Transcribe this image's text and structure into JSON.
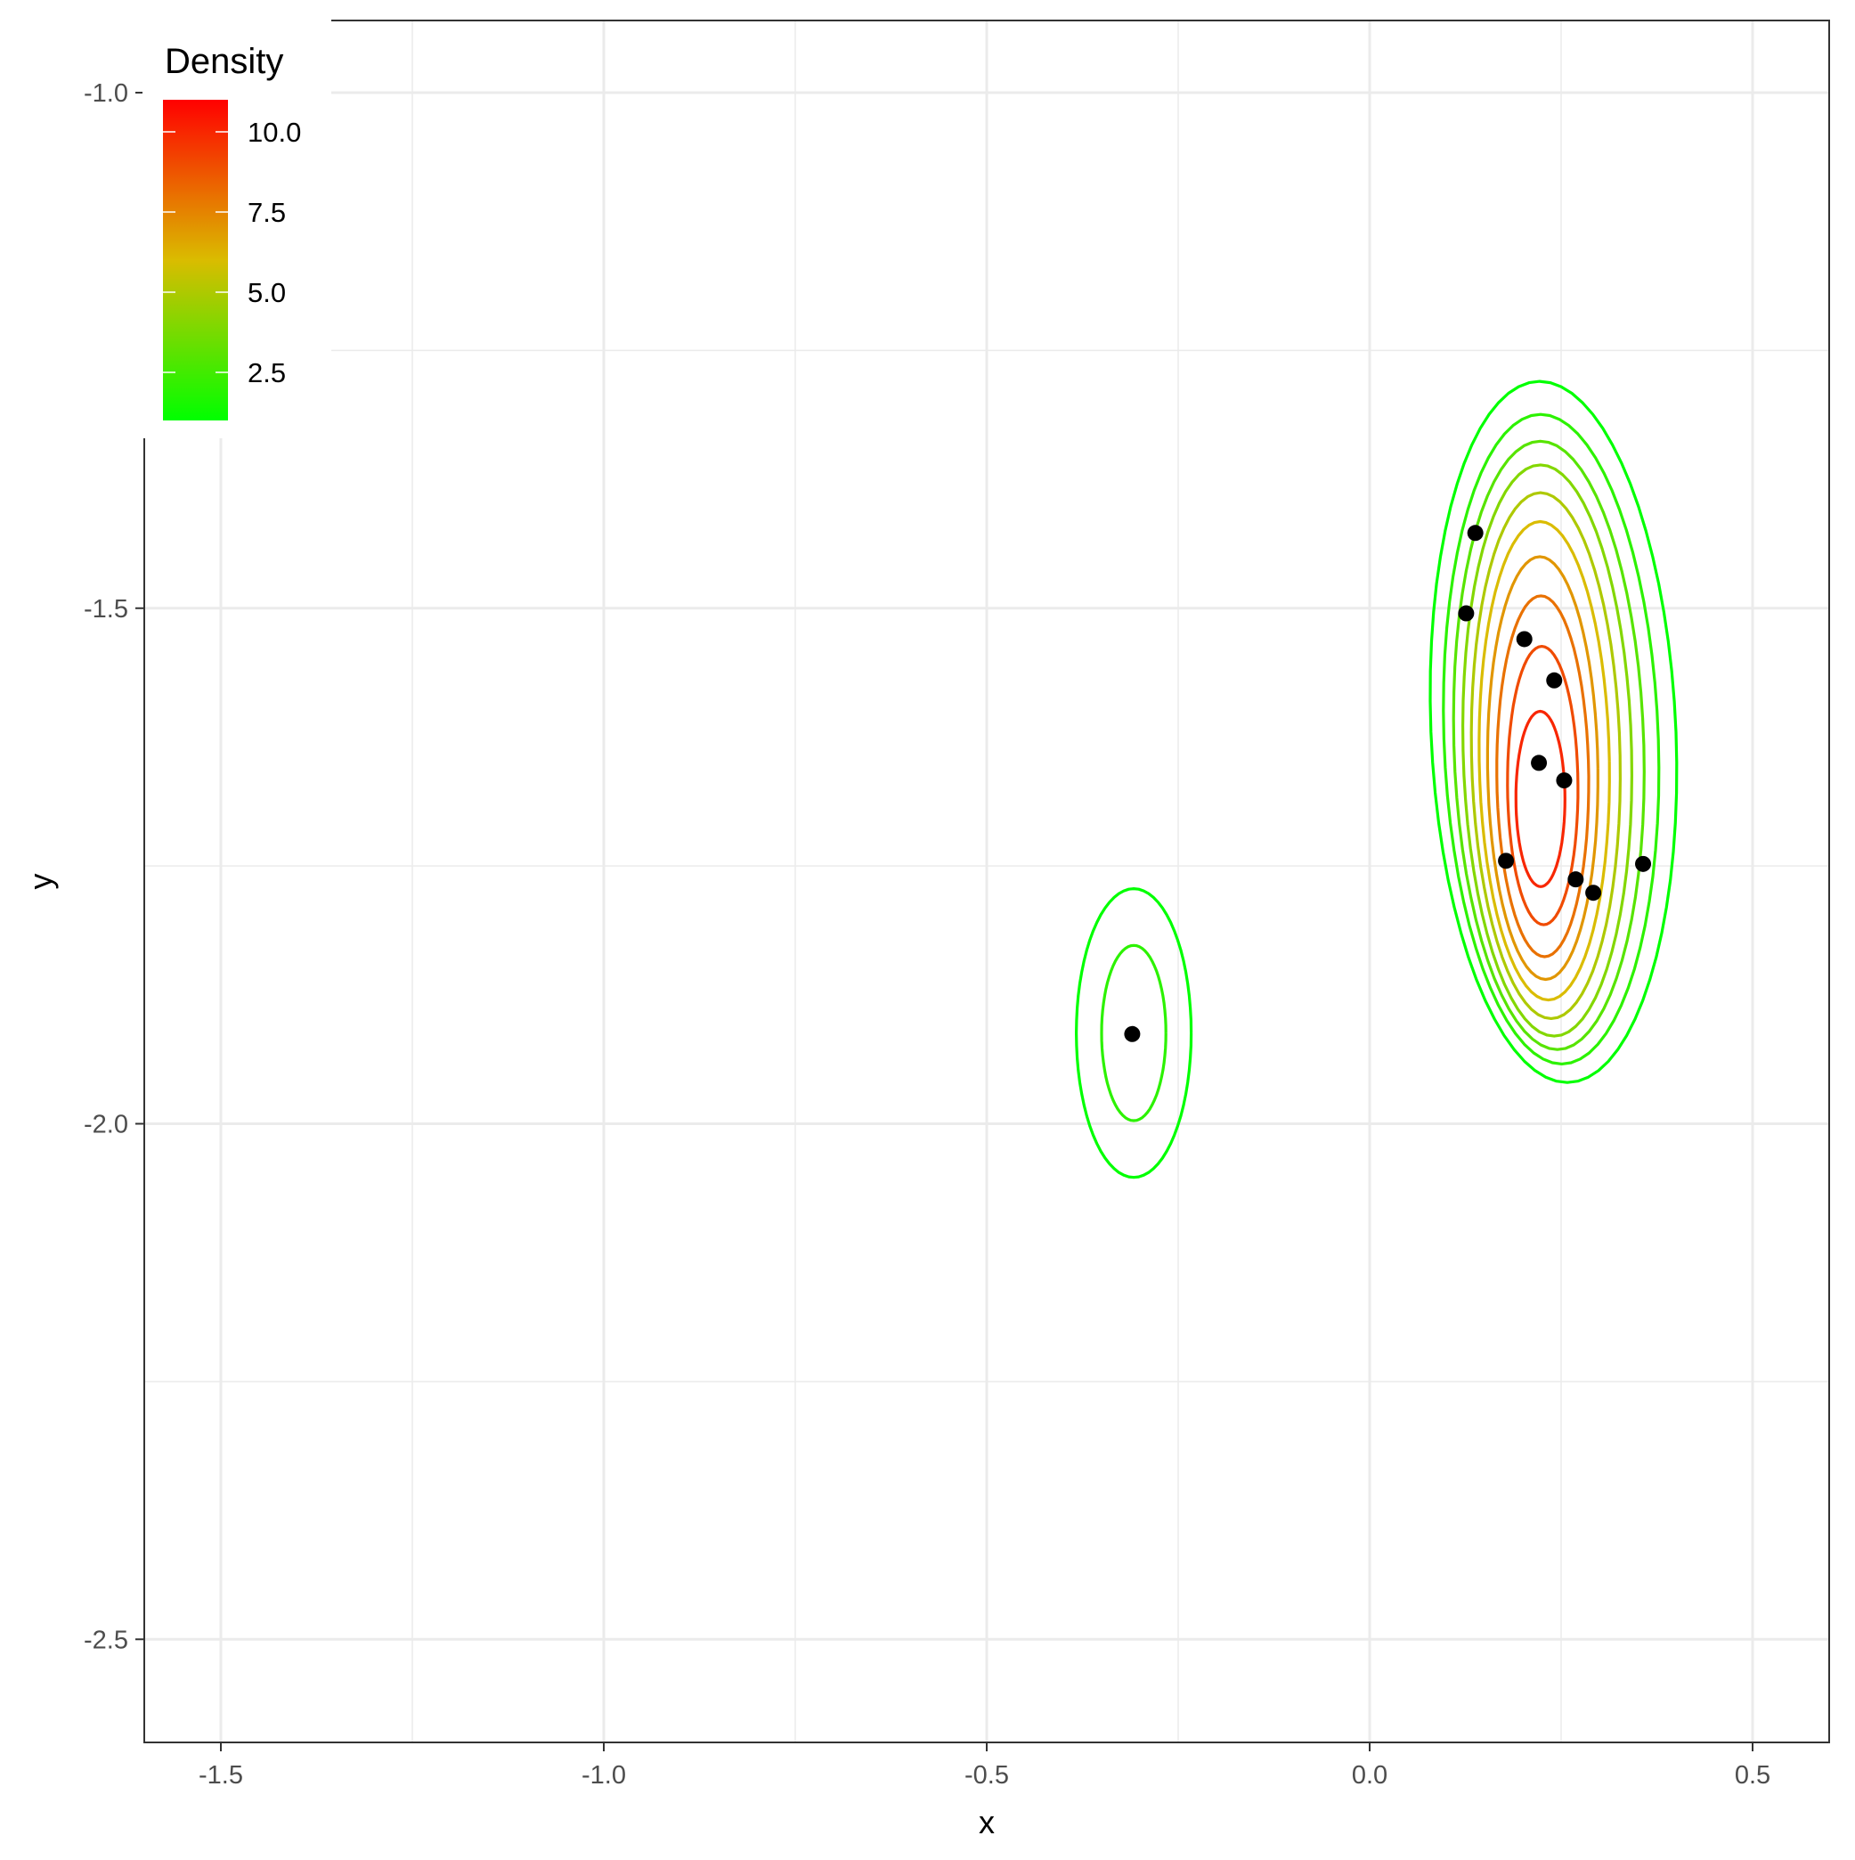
{
  "chart_data": {
    "type": "contour",
    "title": "",
    "xlabel": "x",
    "ylabel": "y",
    "xlim": [
      -1.6,
      0.6
    ],
    "ylim": [
      -2.6,
      -0.93
    ],
    "x_ticks": [
      -1.5,
      -1.0,
      -0.5,
      0.0,
      0.5
    ],
    "x_tick_labels": [
      "-1.5",
      "-1.0",
      "-0.5",
      "0.0",
      "0.5"
    ],
    "y_ticks": [
      -1.0,
      -1.5,
      -2.0,
      -2.5
    ],
    "y_tick_labels": [
      "-1.0",
      "-1.5",
      "-2.0",
      "-2.5"
    ],
    "grid": true,
    "legend": {
      "title": "Density",
      "placement": "top-left",
      "type": "colorbar",
      "range": [
        1.0,
        11.0
      ],
      "ticks": [
        10.0,
        7.5,
        5.0,
        2.5
      ],
      "tick_labels": [
        "10.0",
        "7.5",
        "5.0",
        "2.5"
      ],
      "color_low": "#00ff00",
      "color_high": "#ff0000"
    },
    "points": [
      {
        "x": 0.138,
        "y": -1.427
      },
      {
        "x": 0.126,
        "y": -1.505
      },
      {
        "x": 0.202,
        "y": -1.53
      },
      {
        "x": 0.241,
        "y": -1.57
      },
      {
        "x": 0.221,
        "y": -1.65
      },
      {
        "x": 0.254,
        "y": -1.667
      },
      {
        "x": 0.178,
        "y": -1.745
      },
      {
        "x": 0.269,
        "y": -1.763
      },
      {
        "x": 0.292,
        "y": -1.776
      },
      {
        "x": 0.357,
        "y": -1.748
      },
      {
        "x": -0.31,
        "y": -1.913
      }
    ],
    "contours": [
      {
        "cx": 0.223,
        "cy": -1.685,
        "rx": 0.032,
        "ry": 0.085,
        "tilt": 0.012,
        "level": 10.0
      },
      {
        "cx": 0.226,
        "cy": -1.672,
        "rx": 0.046,
        "ry": 0.135,
        "tilt": 0.03,
        "level": 9.0
      },
      {
        "cx": 0.226,
        "cy": -1.663,
        "rx": 0.06,
        "ry": 0.175,
        "tilt": 0.045,
        "level": 8.0
      },
      {
        "cx": 0.226,
        "cy": -1.655,
        "rx": 0.072,
        "ry": 0.205,
        "tilt": 0.058,
        "level": 7.0
      },
      {
        "cx": 0.228,
        "cy": -1.648,
        "rx": 0.085,
        "ry": 0.232,
        "tilt": 0.07,
        "level": 6.0
      },
      {
        "cx": 0.23,
        "cy": -1.643,
        "rx": 0.097,
        "ry": 0.255,
        "tilt": 0.08,
        "level": 5.0
      },
      {
        "cx": 0.232,
        "cy": -1.638,
        "rx": 0.11,
        "ry": 0.277,
        "tilt": 0.09,
        "level": 4.0
      },
      {
        "cx": 0.234,
        "cy": -1.633,
        "rx": 0.124,
        "ry": 0.295,
        "tilt": 0.1,
        "level": 3.0
      },
      {
        "cx": 0.237,
        "cy": -1.627,
        "rx": 0.14,
        "ry": 0.315,
        "tilt": 0.11,
        "level": 2.0
      },
      {
        "cx": 0.24,
        "cy": -1.62,
        "rx": 0.16,
        "ry": 0.34,
        "tilt": 0.125,
        "level": 1.0
      },
      {
        "cx": -0.308,
        "cy": -1.912,
        "rx": 0.042,
        "ry": 0.085,
        "tilt": 0.0,
        "level": 2.0
      },
      {
        "cx": -0.308,
        "cy": -1.912,
        "rx": 0.075,
        "ry": 0.14,
        "tilt": 0.0,
        "level": 1.0
      }
    ]
  }
}
